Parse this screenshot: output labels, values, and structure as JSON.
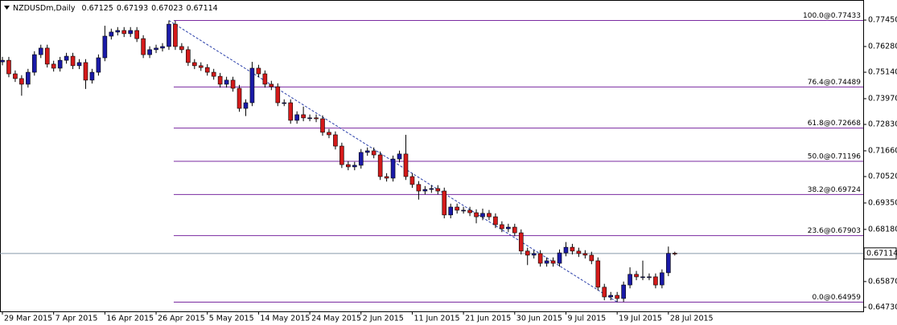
{
  "chart_data": {
    "type": "candlestick",
    "title": "NZDUSDm,Daily",
    "categories": [
      "29 Mar 2015",
      null,
      null,
      null,
      null,
      null,
      null,
      null,
      "7 Apr 2015",
      null,
      null,
      null,
      null,
      null,
      null,
      null,
      "16 Apr 2015",
      null,
      null,
      null,
      null,
      null,
      null,
      null,
      "26 Apr 2015",
      null,
      null,
      null,
      null,
      null,
      null,
      null,
      "5 May 2015",
      null,
      null,
      null,
      null,
      null,
      null,
      null,
      "14 May 2015",
      null,
      null,
      null,
      null,
      null,
      null,
      null,
      "24 May 2015",
      null,
      null,
      null,
      null,
      null,
      null,
      null,
      "2 Jun 2015",
      null,
      null,
      null,
      null,
      null,
      null,
      null,
      "11 Jun 2015",
      null,
      null,
      null,
      null,
      null,
      null,
      null,
      "21 Jun 2015",
      null,
      null,
      null,
      null,
      null,
      null,
      null,
      "30 Jun 2015",
      null,
      null,
      null,
      null,
      null,
      null,
      null,
      "9 Jul 2015",
      null,
      null,
      null,
      null,
      null,
      null,
      null,
      "19 Jul 2015",
      null,
      null,
      null,
      null,
      null,
      null,
      null,
      "28 Jul 2015",
      null
    ],
    "open": [
      0.756,
      0.7567,
      0.7507,
      0.7486,
      0.7461,
      0.7514,
      0.7592,
      0.7621,
      0.755,
      0.7532,
      0.7567,
      0.7585,
      0.7543,
      0.7557,
      0.7479,
      0.7514,
      0.7578,
      0.7674,
      0.7692,
      0.7699,
      0.7685,
      0.7699,
      0.7663,
      0.7592,
      0.7614,
      0.7621,
      0.7628,
      0.7727,
      0.7628,
      0.7614,
      0.7557,
      0.7543,
      0.7535,
      0.7514,
      0.7496,
      0.7461,
      0.7479,
      0.7443,
      0.7354,
      0.7379,
      0.7532,
      0.7507,
      0.7461,
      0.745,
      0.7379,
      0.7379,
      0.7301,
      0.7326,
      0.7312,
      0.7312,
      0.7308,
      0.7248,
      0.7237,
      0.7187,
      0.7105,
      0.7095,
      0.7102,
      0.7159,
      0.7166,
      0.7148,
      0.7052,
      0.7045,
      0.713,
      0.7152,
      0.7052,
      0.7017,
      0.6988,
      0.6995,
      0.6999,
      0.6988,
      0.6882,
      0.6917,
      0.6903,
      0.6903,
      0.6892,
      0.6874,
      0.6889,
      0.6874,
      0.6839,
      0.6821,
      0.6828,
      0.6803,
      0.6722,
      0.6704,
      0.6711,
      0.6668,
      0.6679,
      0.6668,
      0.6714,
      0.6739,
      0.6722,
      0.6711,
      0.6704,
      0.6679,
      0.6562,
      0.6519,
      0.6526,
      0.6512,
      0.6572,
      0.6619,
      0.6608,
      0.6608,
      0.6608,
      0.6572,
      0.6626,
      0.67125
    ],
    "high": [
      0.7582,
      0.7582,
      0.7522,
      0.7501,
      0.7529,
      0.7607,
      0.7636,
      0.7636,
      0.7565,
      0.7582,
      0.76,
      0.76,
      0.7572,
      0.7572,
      0.7529,
      0.7593,
      0.772,
      0.7707,
      0.7714,
      0.7714,
      0.7714,
      0.7714,
      0.7678,
      0.7629,
      0.7636,
      0.7643,
      0.77433,
      0.7742,
      0.7643,
      0.7629,
      0.7572,
      0.7558,
      0.755,
      0.7529,
      0.7511,
      0.7494,
      0.7494,
      0.7458,
      0.7394,
      0.756,
      0.7547,
      0.7522,
      0.7476,
      0.7465,
      0.7394,
      0.7394,
      0.7341,
      0.7362,
      0.7327,
      0.7327,
      0.7323,
      0.7263,
      0.7252,
      0.7202,
      0.712,
      0.7117,
      0.7174,
      0.7181,
      0.7181,
      0.7163,
      0.7067,
      0.7145,
      0.7167,
      0.7237,
      0.7067,
      0.7032,
      0.701,
      0.7014,
      0.7014,
      0.7003,
      0.6932,
      0.6932,
      0.6918,
      0.6918,
      0.6907,
      0.691,
      0.6904,
      0.6889,
      0.6854,
      0.6843,
      0.6843,
      0.6818,
      0.6737,
      0.6726,
      0.6726,
      0.6694,
      0.6694,
      0.6729,
      0.6762,
      0.6754,
      0.6737,
      0.6726,
      0.6719,
      0.6694,
      0.6577,
      0.6541,
      0.6541,
      0.6587,
      0.665,
      0.6634,
      0.668,
      0.6623,
      0.6623,
      0.6641,
      0.6742,
      0.67193
    ],
    "low": [
      0.7545,
      0.7492,
      0.7471,
      0.741,
      0.7446,
      0.7499,
      0.7577,
      0.7535,
      0.7517,
      0.7517,
      0.7552,
      0.7528,
      0.7528,
      0.744,
      0.7464,
      0.7499,
      0.7563,
      0.7659,
      0.7677,
      0.767,
      0.767,
      0.7648,
      0.7577,
      0.7577,
      0.7599,
      0.7606,
      0.7613,
      0.7613,
      0.7599,
      0.7542,
      0.7528,
      0.752,
      0.7499,
      0.7481,
      0.7446,
      0.7446,
      0.7428,
      0.7339,
      0.732,
      0.7364,
      0.7492,
      0.7446,
      0.7435,
      0.7364,
      0.7364,
      0.7286,
      0.7286,
      0.7297,
      0.7297,
      0.7293,
      0.7233,
      0.7222,
      0.7172,
      0.709,
      0.708,
      0.708,
      0.7087,
      0.7144,
      0.7133,
      0.7037,
      0.703,
      0.703,
      0.7115,
      0.7037,
      0.7002,
      0.695,
      0.6973,
      0.698,
      0.6973,
      0.6867,
      0.6867,
      0.6888,
      0.6888,
      0.6877,
      0.6845,
      0.6859,
      0.6859,
      0.6824,
      0.6806,
      0.6806,
      0.6788,
      0.6707,
      0.666,
      0.6689,
      0.6653,
      0.6653,
      0.6653,
      0.6653,
      0.6699,
      0.6707,
      0.6696,
      0.6689,
      0.6664,
      0.6547,
      0.6504,
      0.6504,
      0.64959,
      0.6497,
      0.6557,
      0.6593,
      0.6593,
      0.6593,
      0.6557,
      0.6557,
      0.6611,
      0.67023
    ],
    "close": [
      0.7567,
      0.7507,
      0.7486,
      0.7461,
      0.7514,
      0.7592,
      0.7621,
      0.755,
      0.7532,
      0.7567,
      0.7585,
      0.7543,
      0.7557,
      0.7479,
      0.7514,
      0.7578,
      0.7674,
      0.7692,
      0.7699,
      0.7685,
      0.7699,
      0.7663,
      0.7592,
      0.7614,
      0.7621,
      0.7628,
      0.7727,
      0.7628,
      0.7614,
      0.7557,
      0.7543,
      0.7535,
      0.7514,
      0.7496,
      0.7461,
      0.7479,
      0.7443,
      0.7354,
      0.7379,
      0.7532,
      0.7507,
      0.7461,
      0.745,
      0.7379,
      0.7379,
      0.7301,
      0.7326,
      0.7312,
      0.7312,
      0.7308,
      0.7248,
      0.7237,
      0.7187,
      0.7105,
      0.7095,
      0.7102,
      0.7159,
      0.7166,
      0.7148,
      0.7052,
      0.7045,
      0.713,
      0.7152,
      0.7052,
      0.7017,
      0.6988,
      0.6995,
      0.6999,
      0.6988,
      0.6882,
      0.6917,
      0.6903,
      0.6903,
      0.6892,
      0.6874,
      0.6889,
      0.6874,
      0.6839,
      0.6821,
      0.6828,
      0.6803,
      0.6722,
      0.6704,
      0.6711,
      0.6668,
      0.6679,
      0.6668,
      0.6714,
      0.6739,
      0.6722,
      0.6711,
      0.6704,
      0.6679,
      0.6562,
      0.6519,
      0.6526,
      0.6512,
      0.6572,
      0.6619,
      0.6608,
      0.6608,
      0.6608,
      0.6572,
      0.6626,
      0.6712,
      0.67114
    ],
    "up_color": "#1a1aa8",
    "down_color": "#d41a1a",
    "wick_color": "#000000",
    "ylim": [
      0.6455,
      0.7834
    ],
    "yticks": [
      {
        "value": 0.7745,
        "label": "0.77450"
      },
      {
        "value": 0.7628,
        "label": "0.76280"
      },
      {
        "value": 0.7514,
        "label": "0.75140"
      },
      {
        "value": 0.7397,
        "label": "0.73970"
      },
      {
        "value": 0.7283,
        "label": "0.72830"
      },
      {
        "value": 0.7166,
        "label": "0.71660"
      },
      {
        "value": 0.7052,
        "label": "0.70520"
      },
      {
        "value": 0.6935,
        "label": "0.69350"
      },
      {
        "value": 0.6818,
        "label": "0.68180"
      },
      {
        "value": 0.6587,
        "label": "0.65870"
      },
      {
        "value": 0.6473,
        "label": "0.64730"
      }
    ],
    "grid": false,
    "price_line_color": "#8899aa",
    "fibonacci": {
      "color": "#7a2aa0",
      "trend_color": "#2a3faa",
      "levels": [
        {
          "label": "100.0@0.77433",
          "value": 0.77433
        },
        {
          "label": "76.4@0.74489",
          "value": 0.74489
        },
        {
          "label": "61.8@0.72668",
          "value": 0.72668
        },
        {
          "label": "50.0@0.71196",
          "value": 0.71196
        },
        {
          "label": "38.2@0.69724",
          "value": 0.69724
        },
        {
          "label": "23.6@0.67903",
          "value": 0.67903
        },
        {
          "label": "0.0@0.64959",
          "value": 0.64959
        }
      ]
    }
  }
}
